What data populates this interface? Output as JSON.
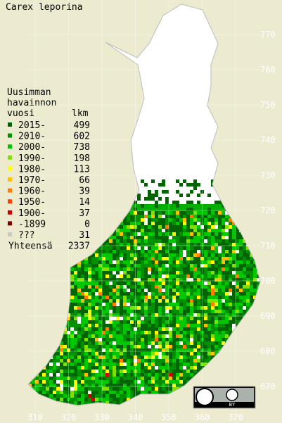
{
  "title": "Carex leporina",
  "legend": {
    "header": [
      "Uusimman",
      "havainnon",
      "vuosi"
    ],
    "count_header": "lkm",
    "rows": [
      {
        "label": "2015-",
        "count": 499,
        "color": "#006400"
      },
      {
        "label": "2010-",
        "count": 602,
        "color": "#009000"
      },
      {
        "label": "2000-",
        "count": 738,
        "color": "#00c800"
      },
      {
        "label": "1990-",
        "count": 198,
        "color": "#80e000"
      },
      {
        "label": "1980-",
        "count": 113,
        "color": "#ffff00"
      },
      {
        "label": "1970-",
        "count": 66,
        "color": "#ffc000"
      },
      {
        "label": "1960-",
        "count": 39,
        "color": "#ff8000"
      },
      {
        "label": "1950-",
        "count": 14,
        "color": "#ff4000"
      },
      {
        "label": "1900-",
        "count": 37,
        "color": "#d00000"
      },
      {
        "label": "-1899",
        "count": 0,
        "color": "#800000"
      },
      {
        "label": "???",
        "count": 31,
        "color": "#c8c8c8"
      }
    ],
    "total_label": "Yhteensä",
    "total": 2337
  },
  "xticks": [
    310,
    320,
    330,
    340,
    350,
    360,
    370
  ],
  "yticks": [
    670,
    680,
    690,
    700,
    710,
    720,
    730,
    740,
    750,
    760,
    770
  ],
  "license": "BY"
}
